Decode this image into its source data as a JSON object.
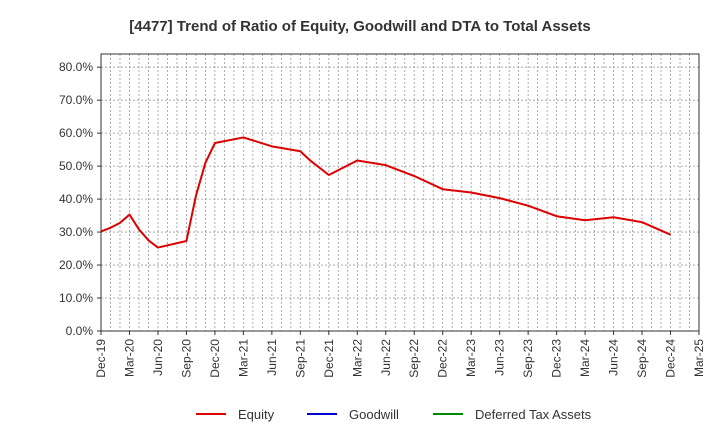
{
  "chart_data": {
    "type": "line",
    "title": "[4477]  Trend of Ratio of Equity, Goodwill and DTA to Total Assets",
    "xlabel": "",
    "ylabel": "",
    "ylim": [
      0,
      0.84
    ],
    "yticks": [
      0,
      0.1,
      0.2,
      0.3,
      0.4,
      0.5,
      0.6,
      0.7,
      0.8
    ],
    "ytick_labels": [
      "0.0%",
      "10.0%",
      "20.0%",
      "30.0%",
      "40.0%",
      "50.0%",
      "60.0%",
      "70.0%",
      "80.0%"
    ],
    "xlim_months": [
      0,
      63
    ],
    "xticks": [
      {
        "label": "Dec-19",
        "m": 0
      },
      {
        "label": "Mar-20",
        "m": 3
      },
      {
        "label": "Jun-20",
        "m": 6
      },
      {
        "label": "Sep-20",
        "m": 9
      },
      {
        "label": "Dec-20",
        "m": 12
      },
      {
        "label": "Mar-21",
        "m": 15
      },
      {
        "label": "Jun-21",
        "m": 18
      },
      {
        "label": "Sep-21",
        "m": 21
      },
      {
        "label": "Dec-21",
        "m": 24
      },
      {
        "label": "Mar-22",
        "m": 27
      },
      {
        "label": "Jun-22",
        "m": 30
      },
      {
        "label": "Sep-22",
        "m": 33
      },
      {
        "label": "Dec-22",
        "m": 36
      },
      {
        "label": "Mar-23",
        "m": 39
      },
      {
        "label": "Jun-23",
        "m": 42
      },
      {
        "label": "Sep-23",
        "m": 45
      },
      {
        "label": "Dec-23",
        "m": 48
      },
      {
        "label": "Mar-24",
        "m": 51
      },
      {
        "label": "Jun-24",
        "m": 54
      },
      {
        "label": "Sep-24",
        "m": 57
      },
      {
        "label": "Dec-24",
        "m": 60
      },
      {
        "label": "Mar-25",
        "m": 63
      }
    ],
    "series": [
      {
        "name": "Equity",
        "color": "#dd0000",
        "points": [
          [
            0,
            0.302
          ],
          [
            1,
            0.313
          ],
          [
            2,
            0.328
          ],
          [
            3,
            0.353
          ],
          [
            4,
            0.308
          ],
          [
            5,
            0.275
          ],
          [
            6,
            0.253
          ],
          [
            9,
            0.273
          ],
          [
            10,
            0.41
          ],
          [
            11,
            0.51
          ],
          [
            12,
            0.57
          ],
          [
            15,
            0.587
          ],
          [
            18,
            0.56
          ],
          [
            21,
            0.545
          ],
          [
            22,
            0.518
          ],
          [
            24,
            0.473
          ],
          [
            27,
            0.517
          ],
          [
            30,
            0.503
          ],
          [
            33,
            0.47
          ],
          [
            36,
            0.43
          ],
          [
            39,
            0.42
          ],
          [
            42,
            0.403
          ],
          [
            45,
            0.38
          ],
          [
            48,
            0.348
          ],
          [
            51,
            0.336
          ],
          [
            54,
            0.345
          ],
          [
            57,
            0.33
          ],
          [
            60,
            0.292
          ]
        ]
      },
      {
        "name": "Goodwill",
        "color": "#0000cc",
        "points": []
      },
      {
        "name": "Deferred Tax Assets",
        "color": "#008800",
        "points": []
      }
    ],
    "legend_position": "bottom"
  }
}
